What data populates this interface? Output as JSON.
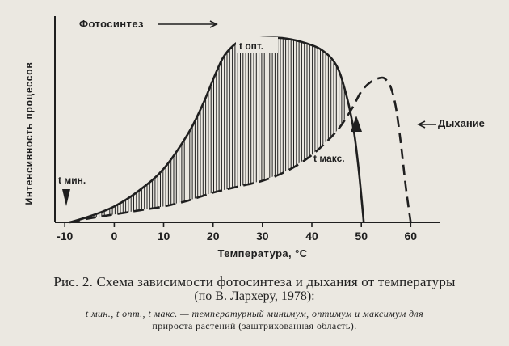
{
  "chart_data": {
    "type": "line",
    "title": "",
    "xlabel": "Температура, °С",
    "ylabel": "Интенсивность процессов",
    "xlim": [
      -12,
      66
    ],
    "ylim": [
      0,
      100
    ],
    "x_ticks": [
      "-10",
      "0",
      "10",
      "20",
      "30",
      "40",
      "50",
      "60"
    ],
    "x_tick_values": [
      -10,
      0,
      10,
      20,
      30,
      40,
      50,
      60
    ],
    "grid": false,
    "series": [
      {
        "name": "Фотосинтез",
        "style": "solid",
        "points": [
          [
            -9,
            0
          ],
          [
            -5,
            3
          ],
          [
            0,
            8
          ],
          [
            5,
            16
          ],
          [
            10,
            27
          ],
          [
            15,
            45
          ],
          [
            18,
            60
          ],
          [
            20,
            72
          ],
          [
            22,
            83
          ],
          [
            24,
            89
          ],
          [
            26,
            92
          ],
          [
            30,
            93
          ],
          [
            34,
            93
          ],
          [
            38,
            91
          ],
          [
            42,
            87
          ],
          [
            45,
            79
          ],
          [
            47,
            64
          ],
          [
            48.5,
            46
          ],
          [
            49.5,
            26
          ],
          [
            50.2,
            8
          ],
          [
            50.5,
            0
          ]
        ]
      },
      {
        "name": "Дыхание",
        "style": "dashed",
        "points": [
          [
            -9,
            0
          ],
          [
            -5,
            2
          ],
          [
            0,
            4
          ],
          [
            5,
            6
          ],
          [
            10,
            8
          ],
          [
            15,
            11
          ],
          [
            20,
            15
          ],
          [
            25,
            18
          ],
          [
            30,
            21
          ],
          [
            35,
            26
          ],
          [
            40,
            34
          ],
          [
            45,
            46
          ],
          [
            48,
            57
          ],
          [
            50,
            66
          ],
          [
            52,
            71
          ],
          [
            54,
            73
          ],
          [
            55,
            72
          ],
          [
            56,
            68
          ],
          [
            57,
            58
          ],
          [
            58,
            40
          ],
          [
            59,
            18
          ],
          [
            60,
            0
          ]
        ]
      }
    ],
    "shaded_region": "between Фотосинтез and Дыхание",
    "annotations": [
      {
        "label": "t мин.",
        "x": -9
      },
      {
        "label": "t опт.",
        "x": 31
      },
      {
        "label": "t макс.",
        "x": 47
      }
    ]
  },
  "caption": {
    "line1": "Рис. 2. Схема зависимости фотосинтеза и дыхания от температуры",
    "line2": "(по В. Лархеру, 1978):",
    "line3": "t мин., t опт., t макс. — температурный минимум, оптимум и максимум для",
    "line4": "прироста растений (заштрихованная область)."
  },
  "colors": {
    "background": "#ebe8e1",
    "ink": "#1f1f1f"
  }
}
